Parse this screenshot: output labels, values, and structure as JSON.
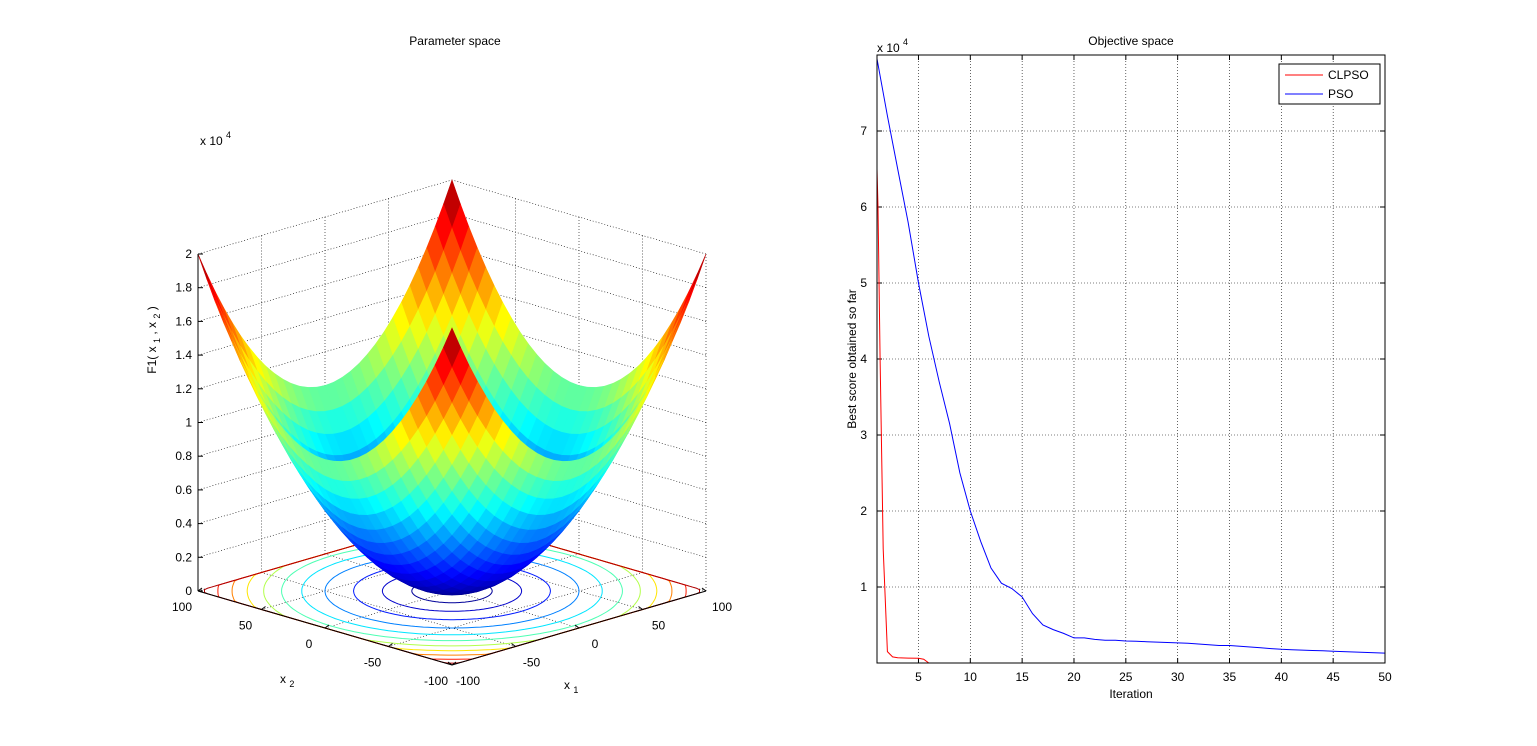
{
  "chart_data": [
    {
      "type": "surface",
      "title": "Parameter space",
      "function_label": "F1",
      "xlabel": "x",
      "xlabel_sub": "1",
      "ylabel": "x",
      "ylabel_sub": "2",
      "zlabel_main": "F1( x",
      "zlabel_sub1": "1",
      "zlabel_mid": " , x",
      "zlabel_sub2": "2",
      "zlabel_end": " )",
      "z_exponent_prefix": "x 10",
      "z_exponent_power": "4",
      "xlim": [
        -100,
        100
      ],
      "ylim": [
        -100,
        100
      ],
      "zlim": [
        0,
        20000
      ],
      "x_ticks": [
        "-100",
        "-50",
        "0",
        "50",
        "100"
      ],
      "y_ticks": [
        "-100",
        "-50",
        "0",
        "50",
        "100"
      ],
      "z_ticks": [
        "0",
        "0.2",
        "0.4",
        "0.6",
        "0.8",
        "1",
        "1.2",
        "1.4",
        "1.6",
        "1.8",
        "2"
      ],
      "grid": true,
      "colormap": "jet",
      "contour_levels": [
        500,
        1500,
        3000,
        5000,
        7000,
        9000,
        11000,
        13000,
        15000,
        17000,
        19000
      ]
    },
    {
      "type": "line",
      "title": "Objective space",
      "xlabel": "Iteration",
      "ylabel": "Best score obtained so far",
      "y_exponent_prefix": "x 10",
      "y_exponent_power": "4",
      "xlim": [
        1,
        50
      ],
      "ylim": [
        0,
        80000
      ],
      "x_ticks": [
        "5",
        "10",
        "15",
        "20",
        "25",
        "30",
        "35",
        "40",
        "45",
        "50"
      ],
      "y_ticks": [
        "1",
        "2",
        "3",
        "4",
        "5",
        "6",
        "7"
      ],
      "grid": true,
      "legend_position": "top-right",
      "series": [
        {
          "name": "CLPSO",
          "color": "#ff0000",
          "x": [
            1,
            1.1,
            1.3,
            1.6,
            2,
            2.5,
            3,
            4,
            5,
            5.5,
            6
          ],
          "y": [
            65000,
            60000,
            40000,
            15000,
            1500,
            800,
            700,
            650,
            620,
            500,
            0
          ]
        },
        {
          "name": "PSO",
          "color": "#0000ff",
          "x": [
            1,
            2,
            3,
            4,
            5,
            6,
            7,
            8,
            9,
            10,
            11,
            12,
            13,
            14,
            15,
            16,
            17,
            18,
            19,
            20,
            21,
            22,
            23,
            24,
            25,
            26,
            27,
            28,
            29,
            30,
            31,
            32,
            33,
            34,
            35,
            36,
            37,
            38,
            39,
            40,
            41,
            42,
            43,
            44,
            45,
            46,
            47,
            48,
            49,
            50
          ],
          "y": [
            79500,
            72000,
            65000,
            58000,
            50000,
            43000,
            37000,
            31500,
            25000,
            20000,
            16000,
            12500,
            10500,
            9800,
            8700,
            6500,
            5000,
            4400,
            3900,
            3300,
            3300,
            3100,
            3000,
            3000,
            2900,
            2850,
            2800,
            2750,
            2700,
            2650,
            2600,
            2500,
            2400,
            2300,
            2300,
            2200,
            2100,
            2000,
            1900,
            1800,
            1750,
            1700,
            1650,
            1600,
            1550,
            1500,
            1450,
            1400,
            1350,
            1300
          ]
        }
      ]
    }
  ]
}
